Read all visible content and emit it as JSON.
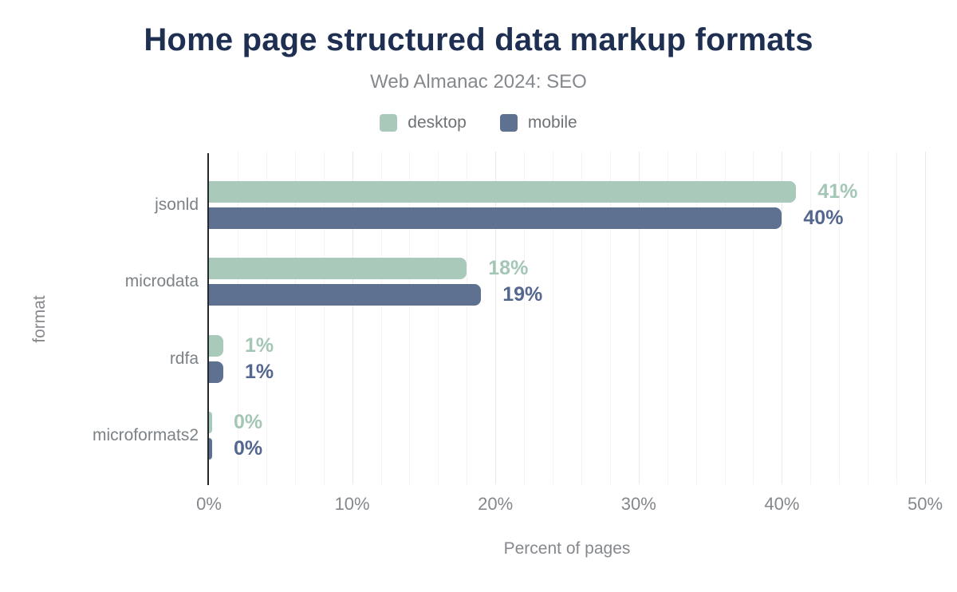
{
  "header": {
    "title": "Home page structured data markup formats",
    "subtitle": "Web Almanac 2024: SEO"
  },
  "legend": {
    "items": [
      {
        "label": "desktop",
        "color": "#a9c9ba"
      },
      {
        "label": "mobile",
        "color": "#5f7190"
      }
    ]
  },
  "colors": {
    "title": "#1e2f52",
    "axis_line": "#24282c",
    "gridline_minor": "#f3f3f3",
    "gridline_major": "#e9e9e9",
    "text_muted": "#85898d"
  },
  "chart_data": {
    "type": "bar",
    "orientation": "horizontal",
    "title": "Home page structured data markup formats",
    "subtitle": "Web Almanac 2024: SEO",
    "categories": [
      "jsonld",
      "microdata",
      "rdfa",
      "microformats2"
    ],
    "series": [
      {
        "name": "desktop",
        "color": "#a9c9ba",
        "label_color": "#a4c6b5",
        "values": [
          41,
          18,
          1,
          0
        ],
        "labels": [
          "41%",
          "18%",
          "1%",
          "0%"
        ]
      },
      {
        "name": "mobile",
        "color": "#5f7190",
        "label_color": "#54678e",
        "values": [
          40,
          19,
          1,
          0
        ],
        "labels": [
          "40%",
          "19%",
          "1%",
          "0%"
        ]
      }
    ],
    "xlabel": "Percent of pages",
    "ylabel": "format",
    "xlim": [
      0,
      50
    ],
    "x_ticks": [
      "0%",
      "10%",
      "20%",
      "30%",
      "40%",
      "50%"
    ],
    "x_tick_values": [
      0,
      10,
      20,
      30,
      40,
      50
    ],
    "grid": "vertical minor every 2%, major every 10%",
    "legend_position": "top center",
    "value_labels": "end of each bar"
  }
}
